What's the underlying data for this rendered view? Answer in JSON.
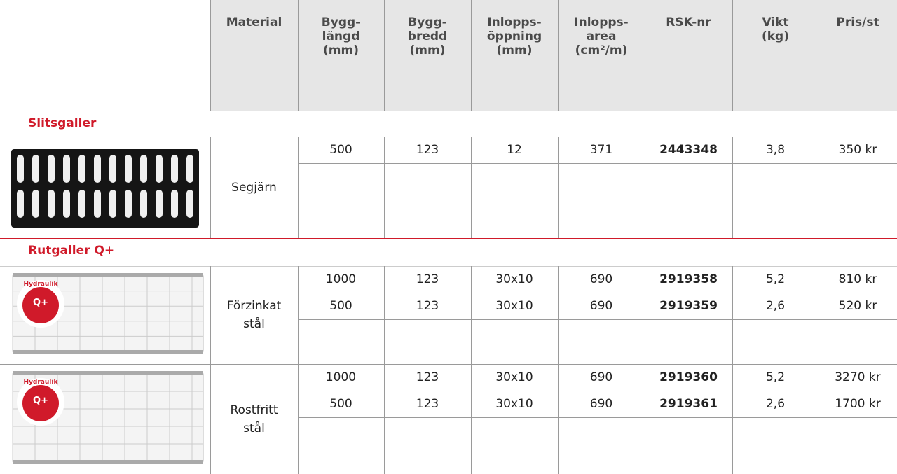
{
  "table": {
    "header": [
      "Material",
      "Bygg-\nlängd\n(mm)",
      "Bygg-\nbredd\n(mm)",
      "Inlopps-\nöppning\n(mm)",
      "Inlopps-\narea\n(cm²/m)",
      "RSK-nr",
      "Vikt\n(kg)",
      "Pris/st"
    ],
    "sections": [
      {
        "title": "Slitsgaller",
        "groups": [
          {
            "material": "Segjärn",
            "rows": [
              [
                "500",
                "123",
                "12",
                "371",
                "2443348",
                "3,8",
                "350 kr"
              ]
            ]
          }
        ]
      },
      {
        "title": "Rutgaller Q+",
        "groups": [
          {
            "material": "Förzinkat\nstål",
            "badge": {
              "text": "Hydraulik",
              "symbol": "Q+"
            },
            "rows": [
              [
                "1000",
                "123",
                "30x10",
                "690",
                "2919358",
                "5,2",
                "810 kr"
              ],
              [
                "500",
                "123",
                "30x10",
                "690",
                "2919359",
                "2,6",
                "520 kr"
              ]
            ]
          },
          {
            "material": "Rostfritt\nstål",
            "badge": {
              "text": "Hydraulik",
              "symbol": "Q+"
            },
            "rows": [
              [
                "1000",
                "123",
                "30x10",
                "690",
                "2919360",
                "5,2",
                "3270 kr"
              ],
              [
                "500",
                "123",
                "30x10",
                "690",
                "2919361",
                "2,6",
                "1700 kr"
              ]
            ]
          }
        ]
      }
    ]
  }
}
